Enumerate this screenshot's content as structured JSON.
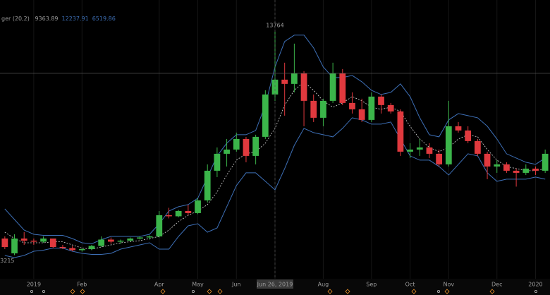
{
  "chart_data": {
    "type": "candlestick",
    "indicator": {
      "name": "ger (20,2)",
      "values": [
        9363.89,
        12237.91,
        6519.86
      ],
      "colors": [
        "#9a9a9a",
        "#3d6fb6",
        "#3d6fb6"
      ]
    },
    "categories": [
      null,
      null,
      null,
      "2019",
      null,
      null,
      null,
      null,
      "Feb",
      null,
      null,
      null,
      null,
      null,
      null,
      null,
      "Apr",
      null,
      null,
      null,
      "May",
      null,
      null,
      null,
      "Jun",
      null,
      null,
      null,
      "Jun 26, 2019",
      null,
      null,
      null,
      null,
      "Aug",
      null,
      null,
      null,
      null,
      "Sep",
      null,
      null,
      null,
      "Oct",
      null,
      null,
      null,
      "Nov",
      null,
      null,
      null,
      null,
      "Dec",
      null,
      null,
      null,
      "2020",
      null
    ],
    "crosshair": {
      "category": "Jun 26, 2019",
      "price": 11800
    },
    "open": [
      4000,
      3300,
      4000,
      3900,
      3850,
      4000,
      3600,
      3550,
      3450,
      3500,
      3650,
      3950,
      3850,
      3900,
      4000,
      4050,
      4100,
      5100,
      5050,
      5300,
      5200,
      5800,
      7200,
      8000,
      8200,
      8700,
      7900,
      8800,
      10800,
      11500,
      11300,
      11800,
      10500,
      9700,
      10500,
      11800,
      10400,
      10100,
      9600,
      10700,
      10300,
      10000,
      8100,
      8200,
      8300,
      8000,
      7500,
      9300,
      9100,
      8600,
      8000,
      7400,
      7500,
      7200,
      7100,
      7300,
      7200
    ],
    "high": [
      4100,
      4200,
      4300,
      4000,
      4100,
      4000,
      3700,
      3650,
      3550,
      3700,
      4100,
      4050,
      3950,
      4050,
      4100,
      4150,
      5300,
      5450,
      5350,
      5600,
      5900,
      7500,
      8300,
      8700,
      9000,
      8800,
      8900,
      11000,
      13764,
      12300,
      13200,
      11900,
      10800,
      10600,
      12300,
      12000,
      10900,
      10600,
      10900,
      10800,
      10400,
      10100,
      8500,
      8700,
      8500,
      8200,
      10500,
      9500,
      9300,
      8700,
      8100,
      7700,
      7600,
      7300,
      7500,
      7400,
      8200
    ],
    "low": [
      3500,
      3215,
      3700,
      3700,
      3800,
      3550,
      3500,
      3400,
      3380,
      3450,
      3600,
      3750,
      3750,
      3850,
      3950,
      3950,
      4050,
      4950,
      5000,
      5100,
      5150,
      5700,
      6900,
      7400,
      8100,
      7600,
      7500,
      8700,
      10500,
      9800,
      10900,
      9300,
      9500,
      9300,
      10400,
      10300,
      9900,
      9500,
      9500,
      9900,
      9900,
      7900,
      7800,
      7900,
      7800,
      7400,
      7400,
      9000,
      8500,
      7900,
      6800,
      7100,
      7100,
      6450,
      7000,
      7000,
      7100
    ],
    "close": [
      3600,
      4000,
      3900,
      3850,
      4000,
      3600,
      3550,
      3450,
      3500,
      3650,
      3950,
      3850,
      3900,
      4000,
      4050,
      4100,
      5100,
      5050,
      5300,
      5200,
      5800,
      7200,
      8000,
      8200,
      8700,
      7900,
      8800,
      10800,
      11500,
      11300,
      11800,
      10500,
      9700,
      10500,
      11800,
      10400,
      10100,
      9600,
      10700,
      10300,
      10000,
      8100,
      8200,
      8300,
      8000,
      7500,
      9300,
      9100,
      8600,
      8000,
      7400,
      7500,
      7200,
      7100,
      7300,
      7200,
      8000
    ],
    "up_color": "#3bb54a",
    "down_color": "#e0393e",
    "bands": {
      "color": "#3d6fb6",
      "middle_color": "#d8d8d8",
      "upper": [
        5400,
        4900,
        4400,
        4200,
        4150,
        4150,
        4150,
        4000,
        3800,
        3750,
        3950,
        4100,
        4100,
        4100,
        4100,
        4200,
        4700,
        5300,
        5500,
        5600,
        5900,
        6900,
        7900,
        8500,
        8900,
        8900,
        9100,
        10300,
        12100,
        13300,
        13600,
        13600,
        13000,
        12100,
        11600,
        11600,
        11700,
        11400,
        11000,
        10800,
        10900,
        11300,
        10700,
        9700,
        8900,
        8800,
        9600,
        9900,
        9800,
        9700,
        9300,
        8700,
        8000,
        7800,
        7600,
        7500,
        7800
      ],
      "middle": [
        4300,
        4000,
        3800,
        3800,
        3800,
        3850,
        3850,
        3700,
        3550,
        3500,
        3600,
        3700,
        3800,
        3850,
        3900,
        4000,
        4100,
        4400,
        4800,
        5100,
        5300,
        5600,
        6200,
        7000,
        7700,
        8000,
        8100,
        8500,
        9200,
        10300,
        11000,
        11400,
        11000,
        10500,
        10200,
        10400,
        10700,
        10500,
        10200,
        10100,
        10200,
        10000,
        9300,
        8700,
        8300,
        8100,
        8300,
        8700,
        8900,
        8800,
        8200,
        7700,
        7400,
        7300,
        7200,
        7200,
        7300
      ],
      "lower": [
        3200,
        3100,
        3200,
        3400,
        3450,
        3550,
        3550,
        3400,
        3300,
        3250,
        3250,
        3300,
        3500,
        3600,
        3700,
        3800,
        3500,
        3500,
        4100,
        4600,
        4700,
        4300,
        4500,
        5500,
        6500,
        7100,
        7100,
        6700,
        6300,
        7300,
        8400,
        9200,
        9000,
        8900,
        8800,
        9200,
        9700,
        9600,
        9400,
        9400,
        9500,
        8700,
        7900,
        7700,
        7700,
        7400,
        7000,
        7500,
        8000,
        7900,
        7100,
        6700,
        6800,
        6800,
        6800,
        6900,
        6800
      ]
    },
    "high_label": 13764,
    "low_label": 3215,
    "ylim": [
      2100,
      15260
    ]
  }
}
